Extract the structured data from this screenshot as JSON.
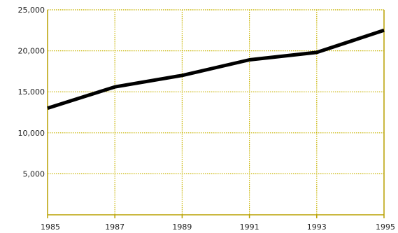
{
  "chart_data": {
    "type": "line",
    "title": "",
    "xlabel": "",
    "ylabel": "",
    "x": [
      1985,
      1987,
      1989,
      1991,
      1993,
      1995
    ],
    "x_tick_labels": [
      "1985",
      "1987",
      "1989",
      "1991",
      "1993",
      "1995"
    ],
    "y_ticks": [
      5000,
      10000,
      15000,
      20000,
      25000
    ],
    "y_tick_labels": [
      "5,000",
      "10,000",
      "15,000",
      "20,000",
      "25,000"
    ],
    "xlim": [
      1985,
      1995
    ],
    "ylim": [
      0,
      25000
    ],
    "series": [
      {
        "values": [
          13000,
          15600,
          17000,
          18900,
          19800,
          22500
        ]
      }
    ],
    "grid": true,
    "colors": {
      "line": "#000000",
      "grid": "#c8b400",
      "axis": "#b8a000",
      "background": "#ffffff"
    }
  }
}
